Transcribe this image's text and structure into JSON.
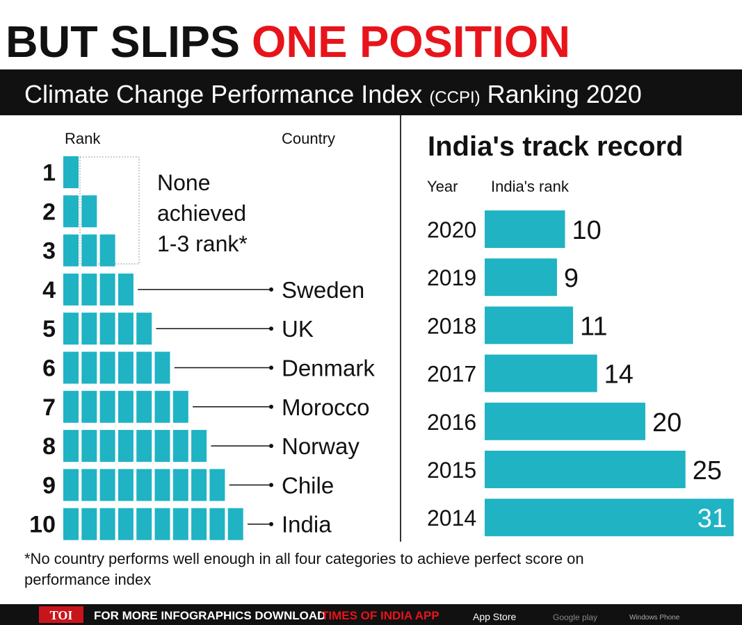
{
  "headline": {
    "part1": "BUT SLIPS",
    "part2": "ONE POSITION"
  },
  "banner": {
    "before": "Climate Change Performance Index",
    "abbr": "(CCPI)",
    "after": "Ranking 2020"
  },
  "chart_data": [
    {
      "type": "pictogram",
      "rank_label": "Rank",
      "country_label": "Country",
      "ranks": [
        1,
        2,
        3,
        4,
        5,
        6,
        7,
        8,
        9,
        10
      ],
      "countries": [
        null,
        null,
        null,
        "Sweden",
        "UK",
        "Denmark",
        "Morocco",
        "Norway",
        "Chile",
        "India"
      ],
      "annotation": [
        "None",
        "achieved",
        "1-3 rank*"
      ],
      "color": "#1fb3c4"
    },
    {
      "type": "bar",
      "title": "India's track record",
      "x_label": "Year",
      "y_label": "India's rank",
      "categories": [
        "2020",
        "2019",
        "2018",
        "2017",
        "2016",
        "2015",
        "2014"
      ],
      "values": [
        10,
        9,
        11,
        14,
        20,
        25,
        31
      ],
      "color": "#1fb3c4"
    }
  ],
  "footnote": [
    "*No country performs well enough in all four categories to achieve perfect score on",
    "performance index"
  ],
  "footer": {
    "brand": "TOI",
    "text": "FOR MORE INFOGRAPHICS DOWNLOAD",
    "app": "TIMES OF INDIA APP",
    "store1": "App Store",
    "store2": "Google play",
    "store3": "Windows Phone"
  }
}
